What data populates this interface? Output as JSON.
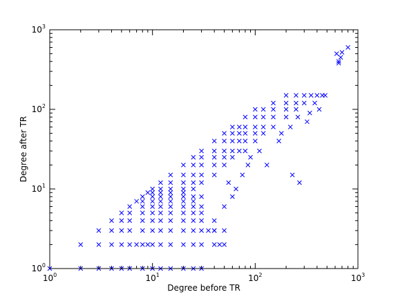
{
  "chart_data": {
    "type": "scatter",
    "title": "",
    "xlabel": "Degree before TR",
    "ylabel": "Degree after TR",
    "xscale": "log",
    "yscale": "log",
    "xlim": [
      1,
      1000
    ],
    "ylim": [
      1,
      1000
    ],
    "grid": false,
    "marker": "x",
    "marker_color": "#0000ff",
    "x_tick_labels": [
      {
        "base": "10",
        "exp": "0"
      },
      {
        "base": "10",
        "exp": "1"
      },
      {
        "base": "10",
        "exp": "2"
      },
      {
        "base": "10",
        "exp": "3"
      }
    ],
    "y_tick_labels": [
      {
        "base": "10",
        "exp": "0"
      },
      {
        "base": "10",
        "exp": "1"
      },
      {
        "base": "10",
        "exp": "2"
      },
      {
        "base": "10",
        "exp": "3"
      }
    ],
    "series": [
      {
        "x": [
          1,
          2,
          3,
          4,
          5,
          6,
          8,
          10,
          12,
          15,
          20,
          25,
          30,
          2,
          3,
          4,
          5,
          6,
          7,
          8,
          9,
          10,
          12,
          15,
          20,
          25,
          30,
          40,
          50,
          3,
          4,
          5,
          6,
          8,
          10,
          12,
          15,
          20,
          25,
          30,
          40,
          50,
          4,
          5,
          6,
          8,
          10,
          12,
          15,
          20,
          25,
          30,
          40,
          5,
          6,
          8,
          10,
          12,
          15,
          20,
          25,
          30,
          6,
          8,
          10,
          12,
          15,
          20,
          25,
          30,
          7,
          8,
          10,
          12,
          15,
          20,
          25,
          8,
          10,
          12,
          15,
          20,
          25,
          9,
          10,
          12,
          15,
          20,
          10,
          12,
          15,
          20,
          25,
          12,
          15,
          20,
          25,
          30,
          15,
          20,
          25,
          30,
          40,
          20,
          25,
          30,
          40,
          50,
          25,
          30,
          40,
          50,
          60,
          30,
          40,
          50,
          60,
          70,
          80,
          40,
          50,
          60,
          70,
          80,
          100,
          50,
          60,
          70,
          80,
          100,
          120,
          60,
          70,
          80,
          100,
          120,
          150,
          80,
          100,
          120,
          150,
          200,
          100,
          120,
          150,
          200,
          250,
          150,
          200,
          250,
          300,
          200,
          250,
          300,
          350,
          400,
          35,
          40,
          45,
          30,
          50,
          55,
          60,
          65,
          75,
          85,
          90,
          110,
          130,
          170,
          180,
          220,
          230,
          260,
          270,
          320,
          340,
          380,
          420,
          450,
          480,
          620,
          650,
          680,
          700,
          800,
          650
        ],
        "y": [
          1,
          1,
          1,
          1,
          1,
          1,
          1,
          1,
          1,
          1,
          1,
          1,
          1,
          2,
          2,
          2,
          2,
          2,
          2,
          2,
          2,
          2,
          2,
          2,
          2,
          2,
          2,
          2,
          2,
          3,
          3,
          3,
          3,
          3,
          3,
          3,
          3,
          3,
          3,
          3,
          3,
          3,
          4,
          4,
          4,
          4,
          4,
          4,
          4,
          4,
          4,
          4,
          4,
          5,
          5,
          5,
          5,
          5,
          5,
          5,
          5,
          5,
          6,
          6,
          6,
          6,
          6,
          6,
          6,
          6,
          7,
          7,
          7,
          7,
          7,
          7,
          7,
          8,
          8,
          8,
          8,
          8,
          8,
          9,
          9,
          9,
          9,
          9,
          10,
          10,
          10,
          10,
          10,
          12,
          12,
          12,
          12,
          12,
          15,
          15,
          15,
          15,
          15,
          20,
          20,
          20,
          20,
          20,
          25,
          25,
          25,
          25,
          25,
          30,
          30,
          30,
          30,
          30,
          30,
          40,
          40,
          40,
          40,
          40,
          40,
          50,
          50,
          50,
          50,
          50,
          50,
          60,
          60,
          60,
          60,
          60,
          60,
          80,
          80,
          80,
          80,
          80,
          100,
          100,
          100,
          100,
          100,
          120,
          120,
          120,
          120,
          150,
          150,
          150,
          150,
          150,
          3,
          3,
          2,
          8,
          6,
          12,
          8,
          10,
          15,
          20,
          25,
          30,
          20,
          40,
          50,
          60,
          15,
          80,
          12,
          70,
          90,
          120,
          100,
          150,
          150,
          500,
          400,
          450,
          520,
          600,
          380
        ]
      }
    ]
  }
}
